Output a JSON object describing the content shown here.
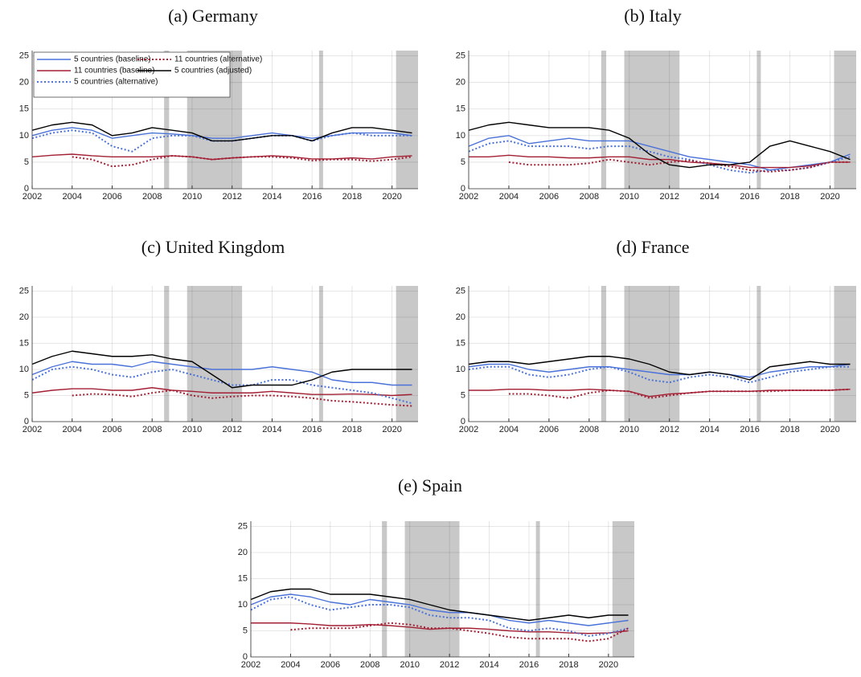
{
  "chart_data": [
    {
      "type": "line",
      "title": "(a) Germany",
      "legend": "upper left",
      "x": [
        2002,
        2003,
        2004,
        2005,
        2006,
        2007,
        2008,
        2009,
        2010,
        2011,
        2012,
        2013,
        2014,
        2015,
        2016,
        2017,
        2018,
        2019,
        2020,
        2021
      ],
      "xlim": [
        2002,
        2021.3
      ],
      "ylim": [
        0,
        26
      ],
      "xticks": [
        2002,
        2004,
        2006,
        2008,
        2010,
        2012,
        2014,
        2016,
        2018,
        2020
      ],
      "yticks": [
        0,
        5,
        10,
        15,
        20,
        25
      ],
      "grid": true,
      "shaded_periods": [
        [
          2008.6,
          2008.85
        ],
        [
          2009.75,
          2012.5
        ],
        [
          2016.35,
          2016.55
        ],
        [
          2020.2,
          2021.3
        ]
      ],
      "series": [
        {
          "name": "5 countries (baseline)",
          "color": "#4a72d8",
          "dash": "solid",
          "values": [
            10,
            11,
            11.5,
            11,
            9.5,
            10,
            10.5,
            10.3,
            10,
            9.5,
            9.5,
            10,
            10.5,
            10,
            9.5,
            10,
            10.5,
            10.5,
            10.5,
            10
          ]
        },
        {
          "name": "11 countries (baseline)",
          "color": "#a31f34",
          "dash": "solid",
          "values": [
            6,
            6.3,
            6.5,
            6.2,
            6,
            6,
            6,
            6.2,
            6,
            5.5,
            5.8,
            6,
            6.2,
            6,
            5.6,
            5.6,
            5.8,
            5.6,
            6,
            6.2
          ]
        },
        {
          "name": "5 countries (alternative)",
          "color": "#4a72d8",
          "dash": "dotted",
          "values": [
            9.5,
            10.5,
            11,
            10.5,
            8,
            7,
            9.5,
            10,
            10,
            9,
            9,
            9.5,
            10,
            10,
            9,
            10,
            10.5,
            10,
            10,
            10
          ]
        },
        {
          "name": "11 countries (alternative)",
          "color": "#a31f34",
          "dash": "dotted",
          "values": [
            null,
            null,
            6,
            5.5,
            4.2,
            4.5,
            5.5,
            6.2,
            6,
            5.5,
            5.8,
            6,
            6,
            5.8,
            5.3,
            5.5,
            5.5,
            5.2,
            5.5,
            6
          ]
        },
        {
          "name": "5 countries (adjusted)",
          "color": "#000000",
          "dash": "solid",
          "values": [
            11,
            12,
            12.5,
            12,
            10,
            10.5,
            11.5,
            11,
            10.5,
            9,
            9,
            9.5,
            10,
            10,
            9,
            10.5,
            11.5,
            11.5,
            11,
            10.5
          ]
        }
      ]
    },
    {
      "type": "line",
      "title": "(b) Italy",
      "x": [
        2002,
        2003,
        2004,
        2005,
        2006,
        2007,
        2008,
        2009,
        2010,
        2011,
        2012,
        2013,
        2014,
        2015,
        2016,
        2017,
        2018,
        2019,
        2020,
        2021
      ],
      "xlim": [
        2002,
        2021.3
      ],
      "ylim": [
        0,
        26
      ],
      "xticks": [
        2002,
        2004,
        2006,
        2008,
        2010,
        2012,
        2014,
        2016,
        2018,
        2020
      ],
      "yticks": [
        0,
        5,
        10,
        15,
        20,
        25
      ],
      "grid": true,
      "shaded_periods": [
        [
          2008.6,
          2008.85
        ],
        [
          2009.75,
          2012.5
        ],
        [
          2016.35,
          2016.55
        ],
        [
          2020.2,
          2021.3
        ]
      ],
      "series": [
        {
          "name": "5 countries (baseline)",
          "color": "#4a72d8",
          "dash": "solid",
          "values": [
            8,
            9.5,
            10,
            8.5,
            9,
            9.5,
            9,
            9,
            9,
            8,
            7,
            6,
            5.5,
            5,
            4.5,
            3.5,
            4,
            4.5,
            5,
            6.5
          ]
        },
        {
          "name": "11 countries (baseline)",
          "color": "#a31f34",
          "dash": "solid",
          "values": [
            6,
            6,
            6.3,
            6,
            6,
            5.8,
            5.8,
            6,
            6,
            5.5,
            5.5,
            5,
            4.8,
            4.5,
            4,
            4,
            4,
            4.3,
            5,
            5
          ]
        },
        {
          "name": "5 countries (alternative)",
          "color": "#4a72d8",
          "dash": "dotted",
          "values": [
            7,
            8.5,
            9,
            8,
            8,
            8,
            7.5,
            8,
            8,
            7,
            6,
            5.5,
            4.5,
            3.5,
            3,
            3.5,
            3.5,
            4,
            5,
            6
          ]
        },
        {
          "name": "11 countries (alternative)",
          "color": "#a31f34",
          "dash": "dotted",
          "values": [
            null,
            null,
            5,
            4.5,
            4.5,
            4.5,
            4.8,
            5.5,
            5,
            4.5,
            5,
            5.3,
            4.8,
            4.2,
            3.5,
            3.2,
            3.5,
            4,
            5,
            5
          ]
        },
        {
          "name": "5 countries (adjusted)",
          "color": "#000000",
          "dash": "solid",
          "values": [
            11,
            12,
            12.5,
            12,
            11.5,
            11.5,
            11.5,
            11,
            9.5,
            6.5,
            4.5,
            4,
            4.5,
            4.5,
            5,
            8,
            9,
            8,
            7,
            5.5
          ]
        }
      ]
    },
    {
      "type": "line",
      "title": "(c) United Kingdom",
      "x": [
        2002,
        2003,
        2004,
        2005,
        2006,
        2007,
        2008,
        2009,
        2010,
        2011,
        2012,
        2013,
        2014,
        2015,
        2016,
        2017,
        2018,
        2019,
        2020,
        2021
      ],
      "xlim": [
        2002,
        2021.3
      ],
      "ylim": [
        0,
        26
      ],
      "xticks": [
        2002,
        2004,
        2006,
        2008,
        2010,
        2012,
        2014,
        2016,
        2018,
        2020
      ],
      "yticks": [
        0,
        5,
        10,
        15,
        20,
        25
      ],
      "grid": true,
      "shaded_periods": [
        [
          2008.6,
          2008.85
        ],
        [
          2009.75,
          2012.5
        ],
        [
          2016.35,
          2016.55
        ],
        [
          2020.2,
          2021.3
        ]
      ],
      "series": [
        {
          "name": "5 countries (baseline)",
          "color": "#4a72d8",
          "dash": "solid",
          "values": [
            9,
            10.5,
            11.5,
            11,
            11,
            10.5,
            11.5,
            11,
            10.5,
            10,
            10,
            10,
            10.5,
            10,
            9.5,
            8,
            7.5,
            7.5,
            7,
            7
          ]
        },
        {
          "name": "11 countries (baseline)",
          "color": "#a31f34",
          "dash": "solid",
          "values": [
            5.5,
            6,
            6.3,
            6.3,
            6,
            6,
            6.5,
            6,
            5.8,
            5.5,
            5.5,
            5.5,
            5.8,
            5.5,
            5.2,
            5.2,
            5.3,
            5.2,
            5,
            5.2
          ]
        },
        {
          "name": "5 countries (alternative)",
          "color": "#4a72d8",
          "dash": "dotted",
          "values": [
            8,
            10,
            10.5,
            10,
            9,
            8.5,
            9.5,
            10,
            9,
            8,
            7,
            7,
            8,
            8,
            7,
            6.5,
            6,
            5.5,
            4.5,
            3.5
          ]
        },
        {
          "name": "11 countries (alternative)",
          "color": "#a31f34",
          "dash": "dotted",
          "values": [
            null,
            null,
            5,
            5.3,
            5.2,
            4.8,
            5.5,
            6,
            5,
            4.5,
            4.8,
            5,
            5,
            4.8,
            4.5,
            4,
            3.8,
            3.5,
            3.2,
            3
          ]
        },
        {
          "name": "5 countries (adjusted)",
          "color": "#000000",
          "dash": "solid",
          "values": [
            11,
            12.5,
            13.5,
            13,
            12.5,
            12.5,
            12.8,
            12,
            11.5,
            9,
            6.5,
            7,
            7,
            7,
            8,
            9.5,
            10,
            10,
            10,
            10
          ]
        }
      ]
    },
    {
      "type": "line",
      "title": "(d) France",
      "x": [
        2002,
        2003,
        2004,
        2005,
        2006,
        2007,
        2008,
        2009,
        2010,
        2011,
        2012,
        2013,
        2014,
        2015,
        2016,
        2017,
        2018,
        2019,
        2020,
        2021
      ],
      "xlim": [
        2002,
        2021.3
      ],
      "ylim": [
        0,
        26
      ],
      "xticks": [
        2002,
        2004,
        2006,
        2008,
        2010,
        2012,
        2014,
        2016,
        2018,
        2020
      ],
      "yticks": [
        0,
        5,
        10,
        15,
        20,
        25
      ],
      "grid": true,
      "shaded_periods": [
        [
          2008.6,
          2008.85
        ],
        [
          2009.75,
          2012.5
        ],
        [
          2016.35,
          2016.55
        ],
        [
          2020.2,
          2021.3
        ]
      ],
      "series": [
        {
          "name": "5 countries (baseline)",
          "color": "#4a72d8",
          "dash": "solid",
          "values": [
            10.5,
            11,
            11,
            10,
            9.5,
            10,
            10.5,
            10.5,
            10,
            9.5,
            9,
            9,
            9.5,
            9,
            8.5,
            9.5,
            10,
            10.5,
            10.5,
            11
          ]
        },
        {
          "name": "11 countries (baseline)",
          "color": "#a31f34",
          "dash": "solid",
          "values": [
            6,
            6,
            6.2,
            6.2,
            6,
            6,
            6.2,
            6,
            5.8,
            4.8,
            5.3,
            5.5,
            5.8,
            5.8,
            5.8,
            6,
            6,
            6,
            6,
            6.2
          ]
        },
        {
          "name": "5 countries (alternative)",
          "color": "#4a72d8",
          "dash": "dotted",
          "values": [
            10,
            10.5,
            10.5,
            9,
            8.5,
            9,
            10,
            10.5,
            9.5,
            8,
            7.5,
            8.5,
            9,
            8.5,
            7.5,
            8.5,
            9.5,
            10,
            10.5,
            10.5
          ]
        },
        {
          "name": "11 countries (alternative)",
          "color": "#a31f34",
          "dash": "dotted",
          "values": [
            null,
            null,
            5.3,
            5.3,
            5,
            4.5,
            5.5,
            6,
            5.8,
            4.5,
            5,
            5.5,
            5.8,
            5.8,
            5.8,
            5.8,
            6,
            6,
            6,
            6.2
          ]
        },
        {
          "name": "5 countries (adjusted)",
          "color": "#000000",
          "dash": "solid",
          "values": [
            11,
            11.5,
            11.5,
            11,
            11.5,
            12,
            12.5,
            12.5,
            12,
            11,
            9.5,
            9,
            9.5,
            9,
            8,
            10.5,
            11,
            11.5,
            11,
            11
          ]
        }
      ]
    },
    {
      "type": "line",
      "title": "(e) Spain",
      "x": [
        2002,
        2003,
        2004,
        2005,
        2006,
        2007,
        2008,
        2009,
        2010,
        2011,
        2012,
        2013,
        2014,
        2015,
        2016,
        2017,
        2018,
        2019,
        2020,
        2021
      ],
      "xlim": [
        2002,
        2021.3
      ],
      "ylim": [
        0,
        26
      ],
      "xticks": [
        2002,
        2004,
        2006,
        2008,
        2010,
        2012,
        2014,
        2016,
        2018,
        2020
      ],
      "yticks": [
        0,
        5,
        10,
        15,
        20,
        25
      ],
      "grid": true,
      "shaded_periods": [
        [
          2008.6,
          2008.85
        ],
        [
          2009.75,
          2012.5
        ],
        [
          2016.35,
          2016.55
        ],
        [
          2020.2,
          2021.3
        ]
      ],
      "series": [
        {
          "name": "5 countries (baseline)",
          "color": "#4a72d8",
          "dash": "solid",
          "values": [
            10,
            11.5,
            12,
            11.5,
            10.5,
            10,
            11,
            10.5,
            10,
            9,
            8.5,
            8.5,
            8,
            7,
            6.5,
            7,
            6.5,
            6,
            6.5,
            7
          ]
        },
        {
          "name": "11 countries (baseline)",
          "color": "#a31f34",
          "dash": "solid",
          "values": [
            6.5,
            6.5,
            6.5,
            6.3,
            6,
            6,
            6.2,
            6,
            5.7,
            5.3,
            5.5,
            5.5,
            5.3,
            5,
            4.8,
            4.8,
            4.6,
            4.5,
            4.6,
            5
          ]
        },
        {
          "name": "5 countries (alternative)",
          "color": "#4a72d8",
          "dash": "dotted",
          "values": [
            9,
            11,
            11.5,
            10,
            9,
            9.5,
            10,
            10,
            9.5,
            8,
            7.5,
            7.5,
            7,
            5.5,
            5,
            5.5,
            5,
            4,
            4.5,
            5.5
          ]
        },
        {
          "name": "11 countries (alternative)",
          "color": "#a31f34",
          "dash": "dotted",
          "values": [
            null,
            null,
            5.2,
            5.5,
            5.5,
            5.5,
            6,
            6.5,
            6.2,
            5.5,
            5.5,
            5,
            4.5,
            3.8,
            3.5,
            3.5,
            3.5,
            3,
            3.5,
            5.5
          ]
        },
        {
          "name": "5 countries (adjusted)",
          "color": "#000000",
          "dash": "solid",
          "values": [
            11,
            12.5,
            13,
            13,
            12,
            12,
            12,
            11.5,
            11,
            10,
            9,
            8.5,
            8,
            7.5,
            7,
            7.5,
            8,
            7.5,
            8,
            8
          ]
        }
      ]
    }
  ]
}
